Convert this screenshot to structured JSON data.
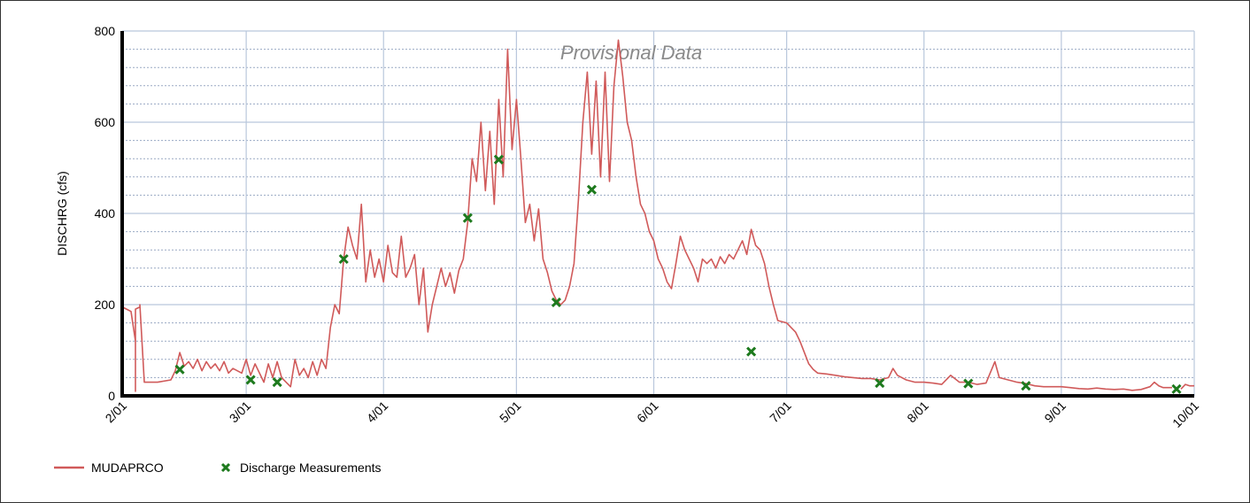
{
  "chart_data": {
    "type": "line",
    "ylabel": "DISCHRG (cfs)",
    "watermark": "Provisional Data",
    "ylim": [
      0,
      800
    ],
    "y_ticks": [
      0,
      200,
      400,
      600,
      800
    ],
    "y_minor_step": 40,
    "xlim": [
      "2/01",
      "10/01"
    ],
    "x_ticks": [
      "2/01",
      "3/01",
      "4/01",
      "5/01",
      "6/01",
      "7/01",
      "8/01",
      "9/01",
      "10/01"
    ],
    "grid": true,
    "legend_position": "bottom-left",
    "colors": {
      "line": "#d05a5a",
      "marker": "#1e7a1e",
      "grid_major": "#b9c7dc",
      "grid_minor": "#9aa9c4"
    },
    "series": [
      {
        "name": "MUDAPRCO",
        "kind": "line",
        "points": [
          [
            "2/01",
            240
          ],
          [
            "2/01",
            195
          ],
          [
            "2/02",
            190
          ],
          [
            "2/03",
            185
          ],
          [
            "2/04",
            120
          ],
          [
            "2/04",
            10
          ],
          [
            "2/04",
            190
          ],
          [
            "2/05",
            195
          ],
          [
            "2/05",
            200
          ],
          [
            "2/06",
            30
          ],
          [
            "2/09",
            30
          ],
          [
            "2/12",
            35
          ],
          [
            "2/13",
            55
          ],
          [
            "2/14",
            95
          ],
          [
            "2/15",
            65
          ],
          [
            "2/16",
            75
          ],
          [
            "2/17",
            60
          ],
          [
            "2/18",
            80
          ],
          [
            "2/19",
            55
          ],
          [
            "2/20",
            75
          ],
          [
            "2/21",
            60
          ],
          [
            "2/22",
            70
          ],
          [
            "2/23",
            55
          ],
          [
            "2/24",
            75
          ],
          [
            "2/25",
            50
          ],
          [
            "2/26",
            60
          ],
          [
            "2/28",
            50
          ],
          [
            "3/01",
            80
          ],
          [
            "3/02",
            45
          ],
          [
            "3/03",
            70
          ],
          [
            "3/05",
            30
          ],
          [
            "3/06",
            70
          ],
          [
            "3/07",
            40
          ],
          [
            "3/08",
            75
          ],
          [
            "3/09",
            40
          ],
          [
            "3/11",
            20
          ],
          [
            "3/12",
            80
          ],
          [
            "3/13",
            45
          ],
          [
            "3/14",
            60
          ],
          [
            "3/15",
            40
          ],
          [
            "3/16",
            75
          ],
          [
            "3/17",
            45
          ],
          [
            "3/18",
            80
          ],
          [
            "3/19",
            60
          ],
          [
            "3/20",
            150
          ],
          [
            "3/21",
            200
          ],
          [
            "3/22",
            180
          ],
          [
            "3/23",
            300
          ],
          [
            "3/24",
            370
          ],
          [
            "3/25",
            330
          ],
          [
            "3/26",
            300
          ],
          [
            "3/27",
            420
          ],
          [
            "3/28",
            250
          ],
          [
            "3/29",
            320
          ],
          [
            "3/30",
            260
          ],
          [
            "3/31",
            300
          ],
          [
            "4/01",
            250
          ],
          [
            "4/02",
            330
          ],
          [
            "4/03",
            270
          ],
          [
            "4/04",
            260
          ],
          [
            "4/05",
            350
          ],
          [
            "4/06",
            260
          ],
          [
            "4/07",
            280
          ],
          [
            "4/08",
            310
          ],
          [
            "4/09",
            200
          ],
          [
            "4/10",
            280
          ],
          [
            "4/11",
            140
          ],
          [
            "4/12",
            200
          ],
          [
            "4/13",
            240
          ],
          [
            "4/14",
            280
          ],
          [
            "4/15",
            240
          ],
          [
            "4/16",
            270
          ],
          [
            "4/17",
            225
          ],
          [
            "4/18",
            275
          ],
          [
            "4/19",
            300
          ],
          [
            "4/20",
            380
          ],
          [
            "4/21",
            520
          ],
          [
            "4/22",
            470
          ],
          [
            "4/23",
            600
          ],
          [
            "4/24",
            450
          ],
          [
            "4/25",
            580
          ],
          [
            "4/26",
            420
          ],
          [
            "4/27",
            650
          ],
          [
            "4/28",
            480
          ],
          [
            "4/29",
            760
          ],
          [
            "4/30",
            540
          ],
          [
            "5/01",
            650
          ],
          [
            "5/02",
            520
          ],
          [
            "5/03",
            380
          ],
          [
            "5/04",
            420
          ],
          [
            "5/05",
            340
          ],
          [
            "5/06",
            410
          ],
          [
            "5/07",
            300
          ],
          [
            "5/08",
            270
          ],
          [
            "5/09",
            230
          ],
          [
            "5/10",
            210
          ],
          [
            "5/11",
            200
          ],
          [
            "5/12",
            210
          ],
          [
            "5/13",
            240
          ],
          [
            "5/14",
            290
          ],
          [
            "5/15",
            430
          ],
          [
            "5/16",
            600
          ],
          [
            "5/17",
            710
          ],
          [
            "5/18",
            530
          ],
          [
            "5/19",
            690
          ],
          [
            "5/20",
            480
          ],
          [
            "5/21",
            710
          ],
          [
            "5/22",
            470
          ],
          [
            "5/23",
            680
          ],
          [
            "5/24",
            780
          ],
          [
            "5/25",
            700
          ],
          [
            "5/26",
            600
          ],
          [
            "5/27",
            560
          ],
          [
            "5/28",
            480
          ],
          [
            "5/29",
            420
          ],
          [
            "5/30",
            400
          ],
          [
            "5/31",
            360
          ],
          [
            "6/01",
            340
          ],
          [
            "6/02",
            300
          ],
          [
            "6/03",
            280
          ],
          [
            "6/04",
            250
          ],
          [
            "6/05",
            235
          ],
          [
            "6/06",
            290
          ],
          [
            "6/07",
            350
          ],
          [
            "6/08",
            320
          ],
          [
            "6/09",
            300
          ],
          [
            "6/10",
            280
          ],
          [
            "6/11",
            250
          ],
          [
            "6/12",
            300
          ],
          [
            "6/13",
            290
          ],
          [
            "6/14",
            300
          ],
          [
            "6/15",
            280
          ],
          [
            "6/16",
            305
          ],
          [
            "6/17",
            290
          ],
          [
            "6/18",
            310
          ],
          [
            "6/19",
            300
          ],
          [
            "6/20",
            320
          ],
          [
            "6/21",
            340
          ],
          [
            "6/22",
            310
          ],
          [
            "6/23",
            365
          ],
          [
            "6/24",
            330
          ],
          [
            "6/25",
            320
          ],
          [
            "6/26",
            290
          ],
          [
            "6/27",
            240
          ],
          [
            "6/28",
            200
          ],
          [
            "6/29",
            165
          ],
          [
            "7/01",
            160
          ],
          [
            "7/02",
            150
          ],
          [
            "7/03",
            140
          ],
          [
            "7/04",
            120
          ],
          [
            "7/05",
            95
          ],
          [
            "7/06",
            70
          ],
          [
            "7/07",
            58
          ],
          [
            "7/08",
            50
          ],
          [
            "7/10",
            48
          ],
          [
            "7/12",
            45
          ],
          [
            "7/14",
            42
          ],
          [
            "7/16",
            40
          ],
          [
            "7/18",
            38
          ],
          [
            "7/20",
            38
          ],
          [
            "7/22",
            35
          ],
          [
            "7/24",
            40
          ],
          [
            "7/25",
            60
          ],
          [
            "7/26",
            45
          ],
          [
            "7/28",
            35
          ],
          [
            "7/30",
            30
          ],
          [
            "8/01",
            30
          ],
          [
            "8/03",
            28
          ],
          [
            "8/05",
            25
          ],
          [
            "8/07",
            45
          ],
          [
            "8/09",
            30
          ],
          [
            "8/11",
            30
          ],
          [
            "8/13",
            25
          ],
          [
            "8/15",
            28
          ],
          [
            "8/17",
            75
          ],
          [
            "8/18",
            40
          ],
          [
            "8/20",
            35
          ],
          [
            "8/22",
            30
          ],
          [
            "8/24",
            27
          ],
          [
            "8/26",
            22
          ],
          [
            "8/28",
            20
          ],
          [
            "8/30",
            20
          ],
          [
            "9/01",
            20
          ],
          [
            "9/03",
            18
          ],
          [
            "9/05",
            16
          ],
          [
            "9/07",
            15
          ],
          [
            "9/09",
            17
          ],
          [
            "9/11",
            15
          ],
          [
            "9/13",
            14
          ],
          [
            "9/15",
            15
          ],
          [
            "9/17",
            12
          ],
          [
            "9/19",
            14
          ],
          [
            "9/21",
            20
          ],
          [
            "9/22",
            30
          ],
          [
            "9/23",
            22
          ],
          [
            "9/24",
            18
          ],
          [
            "9/26",
            18
          ],
          [
            "9/27",
            null
          ],
          [
            "9/28",
            15
          ],
          [
            "9/29",
            25
          ],
          [
            "9/30",
            22
          ],
          [
            "10/01",
            22
          ]
        ]
      },
      {
        "name": "Discharge Measurements",
        "kind": "scatter",
        "points": [
          [
            "2/14",
            58
          ],
          [
            "3/02",
            35
          ],
          [
            "3/08",
            30
          ],
          [
            "3/23",
            300
          ],
          [
            "4/20",
            390
          ],
          [
            "4/27",
            518
          ],
          [
            "5/10",
            205
          ],
          [
            "5/18",
            452
          ],
          [
            "6/23",
            97
          ],
          [
            "7/22",
            28
          ],
          [
            "8/11",
            27
          ],
          [
            "8/24",
            22
          ],
          [
            "9/27",
            15
          ]
        ]
      }
    ],
    "legend": [
      {
        "label": "MUDAPRCO",
        "kind": "line"
      },
      {
        "label": "Discharge Measurements",
        "kind": "marker"
      }
    ]
  }
}
